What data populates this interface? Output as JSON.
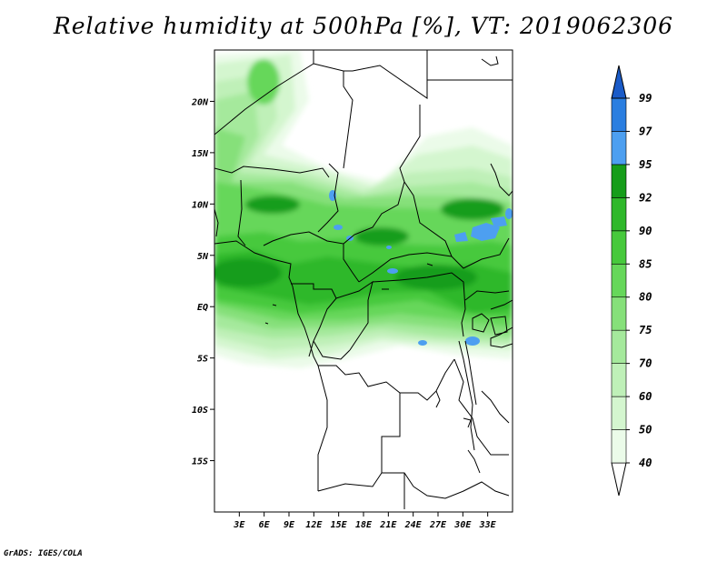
{
  "title": "Relative humidity at 500hPa [%], VT: 2019062306",
  "credit": "GrADS: IGES/COLA",
  "map": {
    "lon_range": [
      0,
      36
    ],
    "lat_range": [
      -20,
      25
    ],
    "lat_ticks": [
      {
        "value": 20,
        "label": "20N"
      },
      {
        "value": 15,
        "label": "15N"
      },
      {
        "value": 10,
        "label": "10N"
      },
      {
        "value": 5,
        "label": "5N"
      },
      {
        "value": 0,
        "label": "EQ"
      },
      {
        "value": -5,
        "label": "5S"
      },
      {
        "value": -10,
        "label": "10S"
      },
      {
        "value": -15,
        "label": "15S"
      }
    ],
    "lon_ticks": [
      {
        "value": 3,
        "label": "3E"
      },
      {
        "value": 6,
        "label": "6E"
      },
      {
        "value": 9,
        "label": "9E"
      },
      {
        "value": 12,
        "label": "12E"
      },
      {
        "value": 15,
        "label": "15E"
      },
      {
        "value": 18,
        "label": "18E"
      },
      {
        "value": 21,
        "label": "21E"
      },
      {
        "value": 24,
        "label": "24E"
      },
      {
        "value": 27,
        "label": "27E"
      },
      {
        "value": 30,
        "label": "30E"
      },
      {
        "value": 33,
        "label": "33E"
      }
    ]
  },
  "colorbar": {
    "levels": [
      "40",
      "50",
      "60",
      "70",
      "75",
      "80",
      "85",
      "90",
      "92",
      "95",
      "97",
      "99"
    ],
    "colors": [
      "#ebfbe9",
      "#d4f6cf",
      "#bff0b8",
      "#a5e99c",
      "#86e07a",
      "#66d75a",
      "#47c93c",
      "#2fb82a",
      "#169d1a",
      "#4d9ff0",
      "#2a7ee0",
      "#1a5bc8"
    ],
    "under_color": "#ffffff",
    "over_color": "#1a5bc8"
  },
  "colors": {
    "ocean_land_line": "#000000",
    "frame": "#000000"
  }
}
